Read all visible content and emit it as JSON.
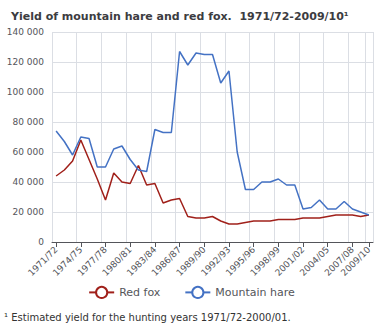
{
  "chart_data": {
    "type": "line",
    "title": "Yield of mountain hare and red fox.  1971/72-2009/10¹",
    "annotations": [
      "¹ Estimated yield for the hunting years 1971/72-2000/01."
    ],
    "categories": [
      "1971/72",
      null,
      null,
      "1974/75",
      null,
      null,
      "1977/78",
      null,
      null,
      "1980/81",
      null,
      null,
      "1983/84",
      null,
      null,
      "1986/87",
      null,
      null,
      "1989/90",
      null,
      null,
      "1992/93",
      null,
      null,
      "1995/96",
      null,
      null,
      "1998/99",
      null,
      null,
      "2001/02",
      null,
      null,
      "2004/05",
      null,
      null,
      "2007/08",
      null,
      "2009/10"
    ],
    "series": [
      {
        "name": "Red fox",
        "color": "#a0201a",
        "values": [
          44000,
          48000,
          54000,
          68000,
          55000,
          42000,
          28000,
          46000,
          40000,
          39000,
          51000,
          38000,
          39000,
          26000,
          28000,
          29000,
          17000,
          16000,
          16000,
          17000,
          14000,
          12000,
          12000,
          13000,
          14000,
          14000,
          14000,
          15000,
          15000,
          15000,
          16000,
          16000,
          16000,
          17000,
          18000,
          18000,
          18000,
          17000,
          18000
        ]
      },
      {
        "name": "Mountain hare",
        "color": "#4472c4",
        "values": [
          74000,
          67000,
          58000,
          70000,
          69000,
          50000,
          50000,
          62000,
          64000,
          55000,
          48000,
          47000,
          75000,
          73000,
          73000,
          127000,
          118000,
          126000,
          125000,
          125000,
          106000,
          114000,
          60000,
          35000,
          35000,
          40000,
          40000,
          42000,
          38000,
          38000,
          22000,
          23000,
          28000,
          22000,
          22000,
          27000,
          22000,
          20000,
          18000
        ]
      }
    ],
    "ylim": [
      0,
      140000
    ],
    "yticks": [
      0,
      {
        "value": 20000,
        "label": "20 000"
      },
      {
        "value": 40000,
        "label": "40 000"
      },
      {
        "value": 60000,
        "label": "60 000"
      },
      {
        "value": 80000,
        "label": "80 000"
      },
      {
        "value": 100000,
        "label": "100 000"
      },
      {
        "value": 120000,
        "label": "120 000"
      },
      {
        "value": 140000,
        "label": "140 000"
      }
    ],
    "grid": true,
    "legend": "bottom"
  }
}
